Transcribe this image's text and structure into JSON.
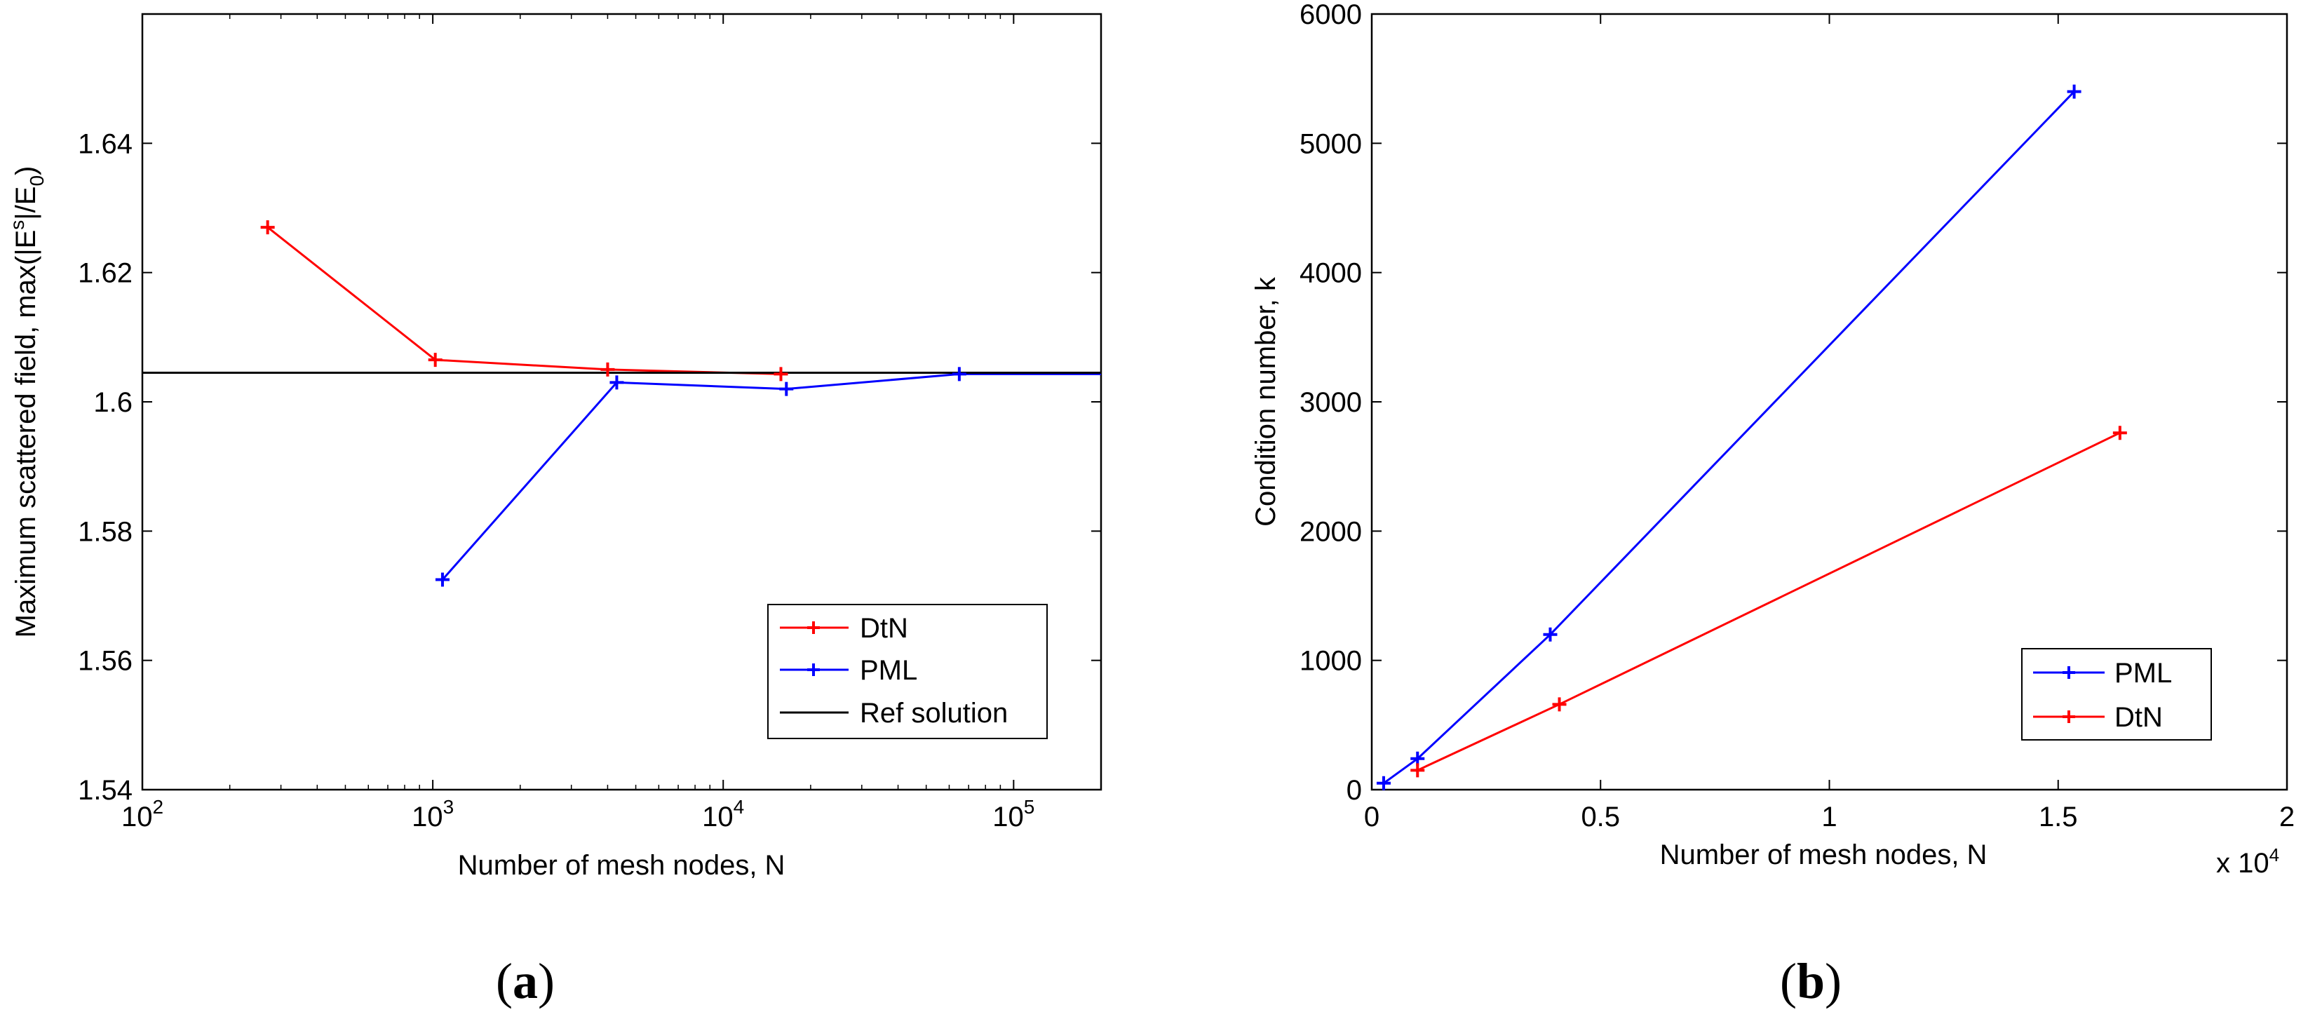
{
  "chart_data": [
    {
      "type": "line",
      "panel": "a",
      "caption_open": "(",
      "caption_letter": "a",
      "caption_close": ")",
      "xscale": "log",
      "xlim": [
        100,
        200000
      ],
      "ylim": [
        1.54,
        1.66
      ],
      "xlabel": "Number of mesh nodes, N",
      "ylabel": "Maximum scattered field, max(|E",
      "ylabel_sup": "s",
      "ylabel_mid": "|/E",
      "ylabel_sub": "0",
      "ylabel_end": ")",
      "xticks": [
        {
          "base": "10",
          "exp": "2",
          "value": 100
        },
        {
          "base": "10",
          "exp": "3",
          "value": 1000
        },
        {
          "base": "10",
          "exp": "4",
          "value": 10000
        },
        {
          "base": "10",
          "exp": "5",
          "value": 100000
        }
      ],
      "yticks": [
        {
          "label": "1.54",
          "value": 1.54
        },
        {
          "label": "1.56",
          "value": 1.56
        },
        {
          "label": "1.58",
          "value": 1.58
        },
        {
          "label": "1.6",
          "value": 1.6
        },
        {
          "label": "1.62",
          "value": 1.62
        },
        {
          "label": "1.64",
          "value": 1.64
        }
      ],
      "legend_position": "lower-right",
      "series": [
        {
          "name": "DtN",
          "color": "#ff0000",
          "marker": true,
          "x": [
            270,
            1020,
            4000,
            15800
          ],
          "y": [
            1.627,
            1.6065,
            1.605,
            1.6043
          ]
        },
        {
          "name": "PML",
          "color": "#0000ff",
          "marker": true,
          "x": [
            1080,
            4300,
            16500,
            65000
          ],
          "y": [
            1.5725,
            1.603,
            1.602,
            1.6043
          ]
        },
        {
          "name": "Ref solution",
          "color": "#000000",
          "marker": false,
          "x": [
            100,
            200000
          ],
          "y": [
            1.6045,
            1.6045
          ]
        }
      ],
      "extra_segments": [
        {
          "color": "#0000ff",
          "x": [
            65000,
            200000
          ],
          "y": [
            1.6043,
            1.6043
          ]
        }
      ]
    },
    {
      "type": "line",
      "panel": "b",
      "caption_open": "(",
      "caption_letter": "b",
      "caption_close": ")",
      "xscale": "linear",
      "xlim": [
        0,
        2
      ],
      "ylim": [
        0,
        6000
      ],
      "xlabel": "Number of mesh nodes, N",
      "ylabel": "Condition number, k",
      "x_multiplier": "x 10",
      "x_multiplier_exp": "4",
      "xticks": [
        {
          "label": "0",
          "value": 0
        },
        {
          "label": "0.5",
          "value": 0.5
        },
        {
          "label": "1",
          "value": 1
        },
        {
          "label": "1.5",
          "value": 1.5
        },
        {
          "label": "2",
          "value": 2
        }
      ],
      "yticks": [
        {
          "label": "0",
          "value": 0
        },
        {
          "label": "1000",
          "value": 1000
        },
        {
          "label": "2000",
          "value": 2000
        },
        {
          "label": "3000",
          "value": 3000
        },
        {
          "label": "4000",
          "value": 4000
        },
        {
          "label": "5000",
          "value": 5000
        },
        {
          "label": "6000",
          "value": 6000
        }
      ],
      "legend_position": "lower-right",
      "series": [
        {
          "name": "PML",
          "color": "#0000ff",
          "marker": true,
          "x": [
            0.026,
            0.1,
            0.39,
            1.535
          ],
          "y": [
            50,
            240,
            1200,
            5400
          ]
        },
        {
          "name": "DtN",
          "color": "#ff0000",
          "marker": true,
          "x": [
            0.1,
            0.41,
            1.635
          ],
          "y": [
            150,
            660,
            2760
          ]
        }
      ],
      "extra_segments": []
    }
  ]
}
